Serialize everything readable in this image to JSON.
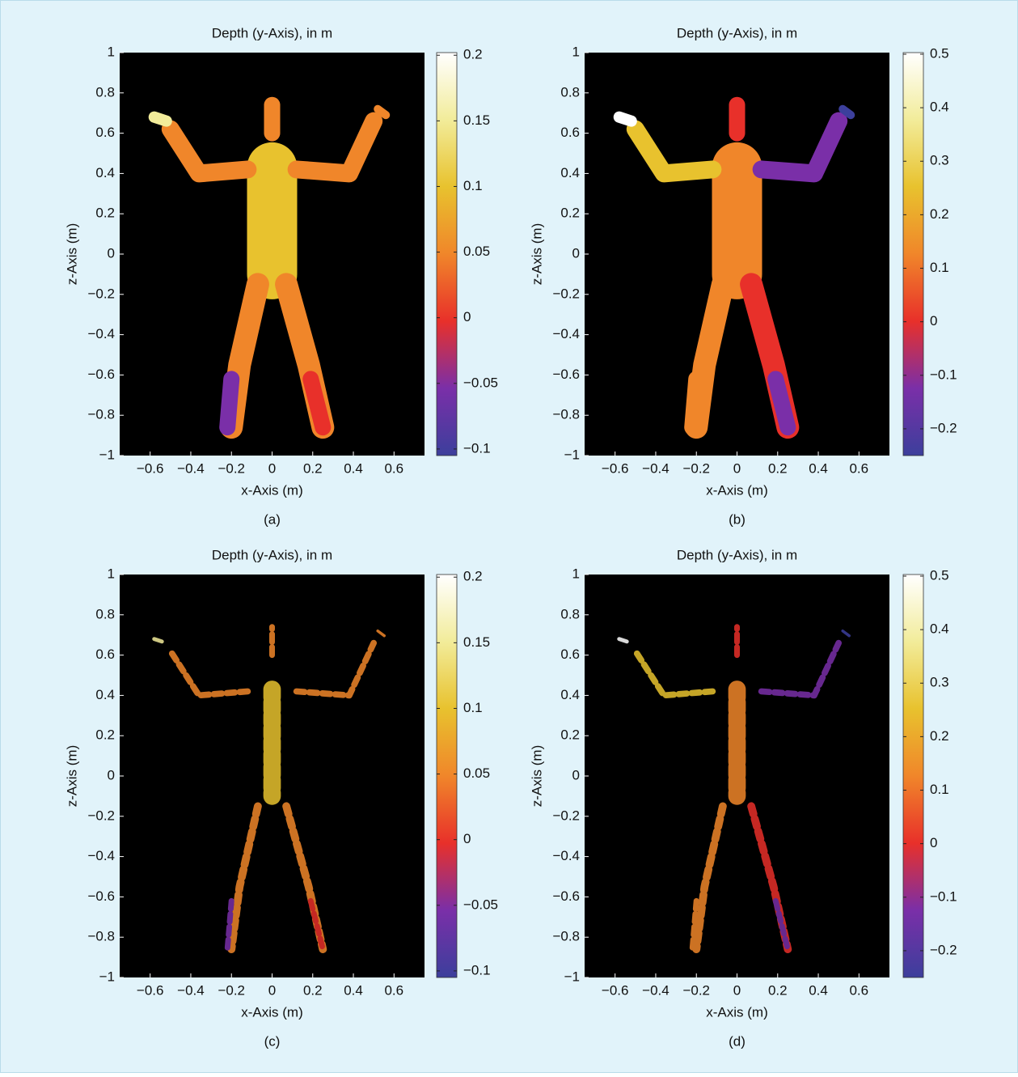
{
  "chart_data": [
    {
      "type": "heatmap",
      "title": "Depth (y-Axis), in m",
      "xlabel": "x-Axis (m)",
      "ylabel": "z-Axis (m)",
      "caption": "(a)",
      "xlim": [
        -0.75,
        0.75
      ],
      "ylim": [
        -1,
        1
      ],
      "xticks": [
        {
          "value": -0.6,
          "label": "−0.6"
        },
        {
          "value": -0.4,
          "label": "−0.4"
        },
        {
          "value": -0.2,
          "label": "−0.2"
        },
        0,
        0.2,
        0.4,
        0.6
      ],
      "yticks": [
        {
          "value": -1,
          "label": "−1"
        },
        {
          "value": -0.8,
          "label": "−0.8"
        },
        {
          "value": -0.6,
          "label": "−0.6"
        },
        {
          "value": -0.4,
          "label": "−0.4"
        },
        {
          "value": -0.2,
          "label": "−0.2"
        },
        0,
        0.2,
        0.4,
        0.6,
        0.8,
        1
      ],
      "clim": [
        -0.105,
        0.202
      ],
      "cticks": [
        {
          "value": -0.1,
          "label": "−0.1"
        },
        {
          "value": -0.05,
          "label": "−0.05"
        },
        0,
        0.05,
        0.1,
        0.15,
        0.2
      ],
      "colormap": [
        "#3c3f9c",
        "#7a2fa8",
        "#e8302a",
        "#f0862a",
        "#e8c22e",
        "#f2ec9a",
        "#ffffff"
      ]
    },
    {
      "type": "heatmap",
      "title": "Depth (y-Axis), in m",
      "xlabel": "x-Axis (m)",
      "ylabel": "z-Axis (m)",
      "caption": "(b)",
      "xlim": [
        -0.75,
        0.75
      ],
      "ylim": [
        -1,
        1
      ],
      "xticks": [
        {
          "value": -0.6,
          "label": "−0.6"
        },
        {
          "value": -0.4,
          "label": "−0.4"
        },
        {
          "value": -0.2,
          "label": "−0.2"
        },
        0,
        0.2,
        0.4,
        0.6
      ],
      "yticks": [
        {
          "value": -1,
          "label": "−1"
        },
        {
          "value": -0.8,
          "label": "−0.8"
        },
        {
          "value": -0.6,
          "label": "−0.6"
        },
        {
          "value": -0.4,
          "label": "−0.4"
        },
        {
          "value": -0.2,
          "label": "−0.2"
        },
        0,
        0.2,
        0.4,
        0.6,
        0.8,
        1
      ],
      "clim": [
        -0.25,
        0.503
      ],
      "cticks": [
        {
          "value": -0.2,
          "label": "−0.2"
        },
        {
          "value": -0.1,
          "label": "−0.1"
        },
        0,
        0.1,
        0.2,
        0.3,
        0.4,
        0.5
      ],
      "colormap": [
        "#3c3f9c",
        "#7a2fa8",
        "#e8302a",
        "#f0862a",
        "#e8c22e",
        "#f2ec9a",
        "#ffffff"
      ]
    },
    {
      "type": "heatmap",
      "title": "Depth (y-Axis), in m",
      "xlabel": "x-Axis (m)",
      "ylabel": "z-Axis (m)",
      "caption": "(c)",
      "xlim": [
        -0.75,
        0.75
      ],
      "ylim": [
        -1,
        1
      ],
      "xticks": [
        {
          "value": -0.6,
          "label": "−0.6"
        },
        {
          "value": -0.4,
          "label": "−0.4"
        },
        {
          "value": -0.2,
          "label": "−0.2"
        },
        0,
        0.2,
        0.4,
        0.6
      ],
      "yticks": [
        {
          "value": -1,
          "label": "−1"
        },
        {
          "value": -0.8,
          "label": "−0.8"
        },
        {
          "value": -0.6,
          "label": "−0.6"
        },
        {
          "value": -0.4,
          "label": "−0.4"
        },
        {
          "value": -0.2,
          "label": "−0.2"
        },
        0,
        0.2,
        0.4,
        0.6,
        0.8,
        1
      ],
      "clim": [
        -0.105,
        0.202
      ],
      "cticks": [
        {
          "value": -0.1,
          "label": "−0.1"
        },
        {
          "value": -0.05,
          "label": "−0.05"
        },
        0,
        0.05,
        0.1,
        0.15,
        0.2
      ],
      "colormap": [
        "#3c3f9c",
        "#7a2fa8",
        "#e8302a",
        "#f0862a",
        "#e8c22e",
        "#f2ec9a",
        "#ffffff"
      ]
    },
    {
      "type": "heatmap",
      "title": "Depth (y-Axis), in m",
      "xlabel": "x-Axis (m)",
      "ylabel": "z-Axis (m)",
      "caption": "(d)",
      "xlim": [
        -0.75,
        0.75
      ],
      "ylim": [
        -1,
        1
      ],
      "xticks": [
        {
          "value": -0.6,
          "label": "−0.6"
        },
        {
          "value": -0.4,
          "label": "−0.4"
        },
        {
          "value": -0.2,
          "label": "−0.2"
        },
        0,
        0.2,
        0.4,
        0.6
      ],
      "yticks": [
        {
          "value": -1,
          "label": "−1"
        },
        {
          "value": -0.8,
          "label": "−0.8"
        },
        {
          "value": -0.6,
          "label": "−0.6"
        },
        {
          "value": -0.4,
          "label": "−0.4"
        },
        {
          "value": -0.2,
          "label": "−0.2"
        },
        0,
        0.2,
        0.4,
        0.6,
        0.8,
        1
      ],
      "clim": [
        -0.25,
        0.503
      ],
      "cticks": [
        {
          "value": -0.2,
          "label": "−0.2"
        },
        {
          "value": -0.1,
          "label": "−0.1"
        },
        0,
        0.1,
        0.2,
        0.3,
        0.4,
        0.5
      ],
      "colormap": [
        "#3c3f9c",
        "#7a2fa8",
        "#e8302a",
        "#f0862a",
        "#e8c22e",
        "#f2ec9a",
        "#ffffff"
      ]
    }
  ]
}
